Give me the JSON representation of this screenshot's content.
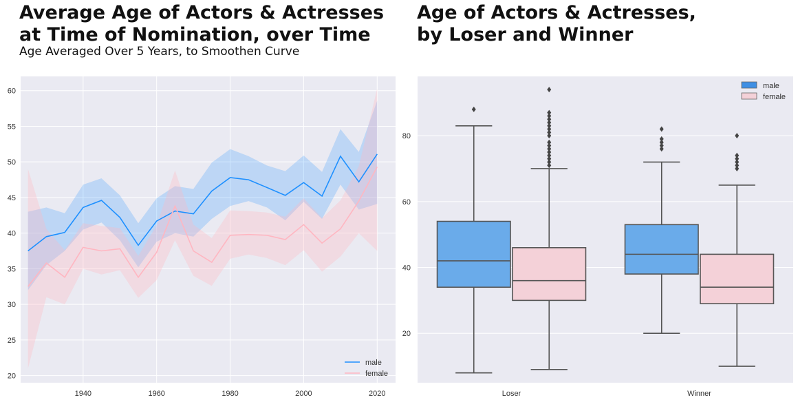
{
  "colors": {
    "male": "#1e90ff",
    "female": "#ffb6c1",
    "bg": "#eaeaf2",
    "grid": "#ffffff",
    "box_line": "#555555"
  },
  "chart_data": [
    {
      "type": "line",
      "title": "Average Age of Actors & Actresses\nat Time of Nomination, over Time",
      "subtitle": "Age Averaged Over 5 Years, to Smoothen Curve",
      "xlabel": "",
      "ylabel": "",
      "xlim": [
        1923,
        2025
      ],
      "ylim": [
        19,
        62
      ],
      "xticks": [
        1940,
        1960,
        1980,
        2000,
        2020
      ],
      "yticks": [
        20,
        25,
        30,
        35,
        40,
        45,
        50,
        55,
        60
      ],
      "grid": true,
      "legend": "bottom-right",
      "x": [
        1925,
        1930,
        1935,
        1940,
        1945,
        1950,
        1955,
        1960,
        1965,
        1970,
        1975,
        1980,
        1985,
        1990,
        1995,
        2000,
        2005,
        2010,
        2015,
        2020
      ],
      "series": [
        {
          "name": "male",
          "values": [
            37.5,
            39.5,
            40.1,
            43.6,
            44.6,
            42.2,
            38.3,
            41.7,
            43.1,
            42.7,
            45.9,
            47.8,
            47.5,
            46.4,
            45.3,
            47.1,
            45.2,
            50.8,
            47.2,
            51.1
          ],
          "ci_low": [
            32.0,
            35.5,
            37.5,
            40.5,
            41.5,
            39.0,
            35.2,
            38.8,
            40.0,
            39.5,
            42.0,
            43.8,
            44.5,
            43.6,
            41.8,
            44.4,
            42.0,
            46.8,
            43.3,
            44.1
          ],
          "ci_high": [
            43.0,
            43.6,
            42.8,
            46.8,
            47.7,
            45.3,
            41.4,
            44.9,
            46.6,
            46.2,
            49.9,
            51.8,
            50.8,
            49.5,
            48.7,
            50.9,
            48.6,
            54.6,
            51.4,
            58.6
          ]
        },
        {
          "name": "female",
          "values": [
            32.5,
            35.8,
            33.8,
            38.0,
            37.5,
            37.8,
            33.8,
            37.3,
            43.8,
            37.5,
            35.9,
            39.7,
            39.8,
            39.7,
            39.1,
            41.2,
            38.6,
            40.6,
            44.5,
            49.3
          ],
          "ci_low": [
            21.0,
            31.0,
            30.0,
            35.0,
            34.2,
            34.8,
            30.9,
            33.4,
            39.0,
            34.0,
            32.6,
            36.4,
            37.0,
            36.5,
            35.5,
            37.6,
            34.6,
            36.7,
            40.0,
            37.5
          ],
          "ci_high": [
            49.0,
            40.6,
            37.6,
            41.4,
            41.0,
            40.7,
            36.8,
            41.1,
            48.8,
            41.2,
            39.3,
            43.2,
            43.1,
            42.9,
            42.3,
            44.9,
            42.1,
            44.6,
            49.4,
            60.3
          ]
        }
      ]
    },
    {
      "type": "box",
      "title": "Age of Actors & Actresses,\nby Loser and Winner",
      "xlabel": "",
      "ylabel": "",
      "categories": [
        "Loser",
        "Winner"
      ],
      "ylim": [
        5,
        98
      ],
      "yticks": [
        20,
        40,
        60,
        80
      ],
      "grid": true,
      "legend": "top-right",
      "series": [
        {
          "name": "male",
          "boxes": [
            {
              "whisker_low": 8,
              "q1": 34,
              "median": 42,
              "q3": 54,
              "whisker_high": 83,
              "outliers": [
                88
              ]
            },
            {
              "whisker_low": 20,
              "q1": 38,
              "median": 44,
              "q3": 53,
              "whisker_high": 72,
              "outliers": [
                76,
                77,
                78,
                79,
                82
              ]
            }
          ]
        },
        {
          "name": "female",
          "boxes": [
            {
              "whisker_low": 9,
              "q1": 30,
              "median": 36,
              "q3": 46,
              "whisker_high": 70,
              "outliers": [
                71,
                72,
                73,
                74,
                75,
                76,
                77,
                78,
                80,
                81,
                82,
                83,
                84,
                85,
                86,
                87,
                94
              ]
            },
            {
              "whisker_low": 10,
              "q1": 29,
              "median": 34,
              "q3": 44,
              "whisker_high": 65,
              "outliers": [
                70,
                71,
                72,
                73,
                74,
                80
              ]
            }
          ]
        }
      ]
    }
  ]
}
